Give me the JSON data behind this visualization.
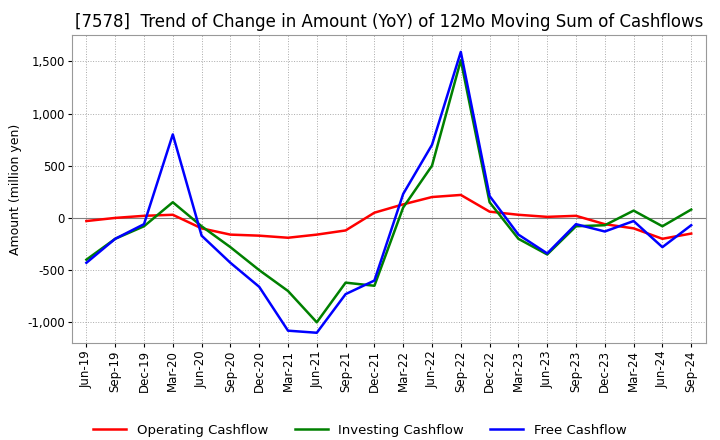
{
  "title": "[7578]  Trend of Change in Amount (YoY) of 12Mo Moving Sum of Cashflows",
  "ylabel": "Amount (million yen)",
  "x_labels": [
    "Jun-19",
    "Sep-19",
    "Dec-19",
    "Mar-20",
    "Jun-20",
    "Sep-20",
    "Dec-20",
    "Mar-21",
    "Jun-21",
    "Sep-21",
    "Dec-21",
    "Mar-22",
    "Jun-22",
    "Sep-22",
    "Dec-22",
    "Mar-23",
    "Jun-23",
    "Sep-23",
    "Dec-23",
    "Mar-24",
    "Jun-24",
    "Sep-24"
  ],
  "operating": [
    -30,
    0,
    20,
    30,
    -100,
    -160,
    -170,
    -190,
    -160,
    -120,
    50,
    130,
    200,
    220,
    60,
    30,
    10,
    20,
    -60,
    -100,
    -200,
    -150
  ],
  "investing": [
    -400,
    -200,
    -80,
    150,
    -80,
    -280,
    -500,
    -700,
    -1000,
    -620,
    -650,
    100,
    500,
    1510,
    150,
    -200,
    -350,
    -80,
    -70,
    70,
    -80,
    80
  ],
  "free": [
    -430,
    -200,
    -60,
    800,
    -170,
    -430,
    -660,
    -1080,
    -1100,
    -730,
    -600,
    230,
    700,
    1590,
    210,
    -160,
    -340,
    -60,
    -130,
    -30,
    -280,
    -70
  ],
  "ylim": [
    -1200,
    1750
  ],
  "yticks": [
    -1000,
    -500,
    0,
    500,
    1000,
    1500
  ],
  "operating_color": "#ff0000",
  "investing_color": "#008000",
  "free_color": "#0000ff",
  "background_color": "#ffffff",
  "grid_color": "#aaaaaa",
  "title_fontsize": 12,
  "axis_fontsize": 9,
  "tick_fontsize": 8.5,
  "legend_fontsize": 9.5
}
